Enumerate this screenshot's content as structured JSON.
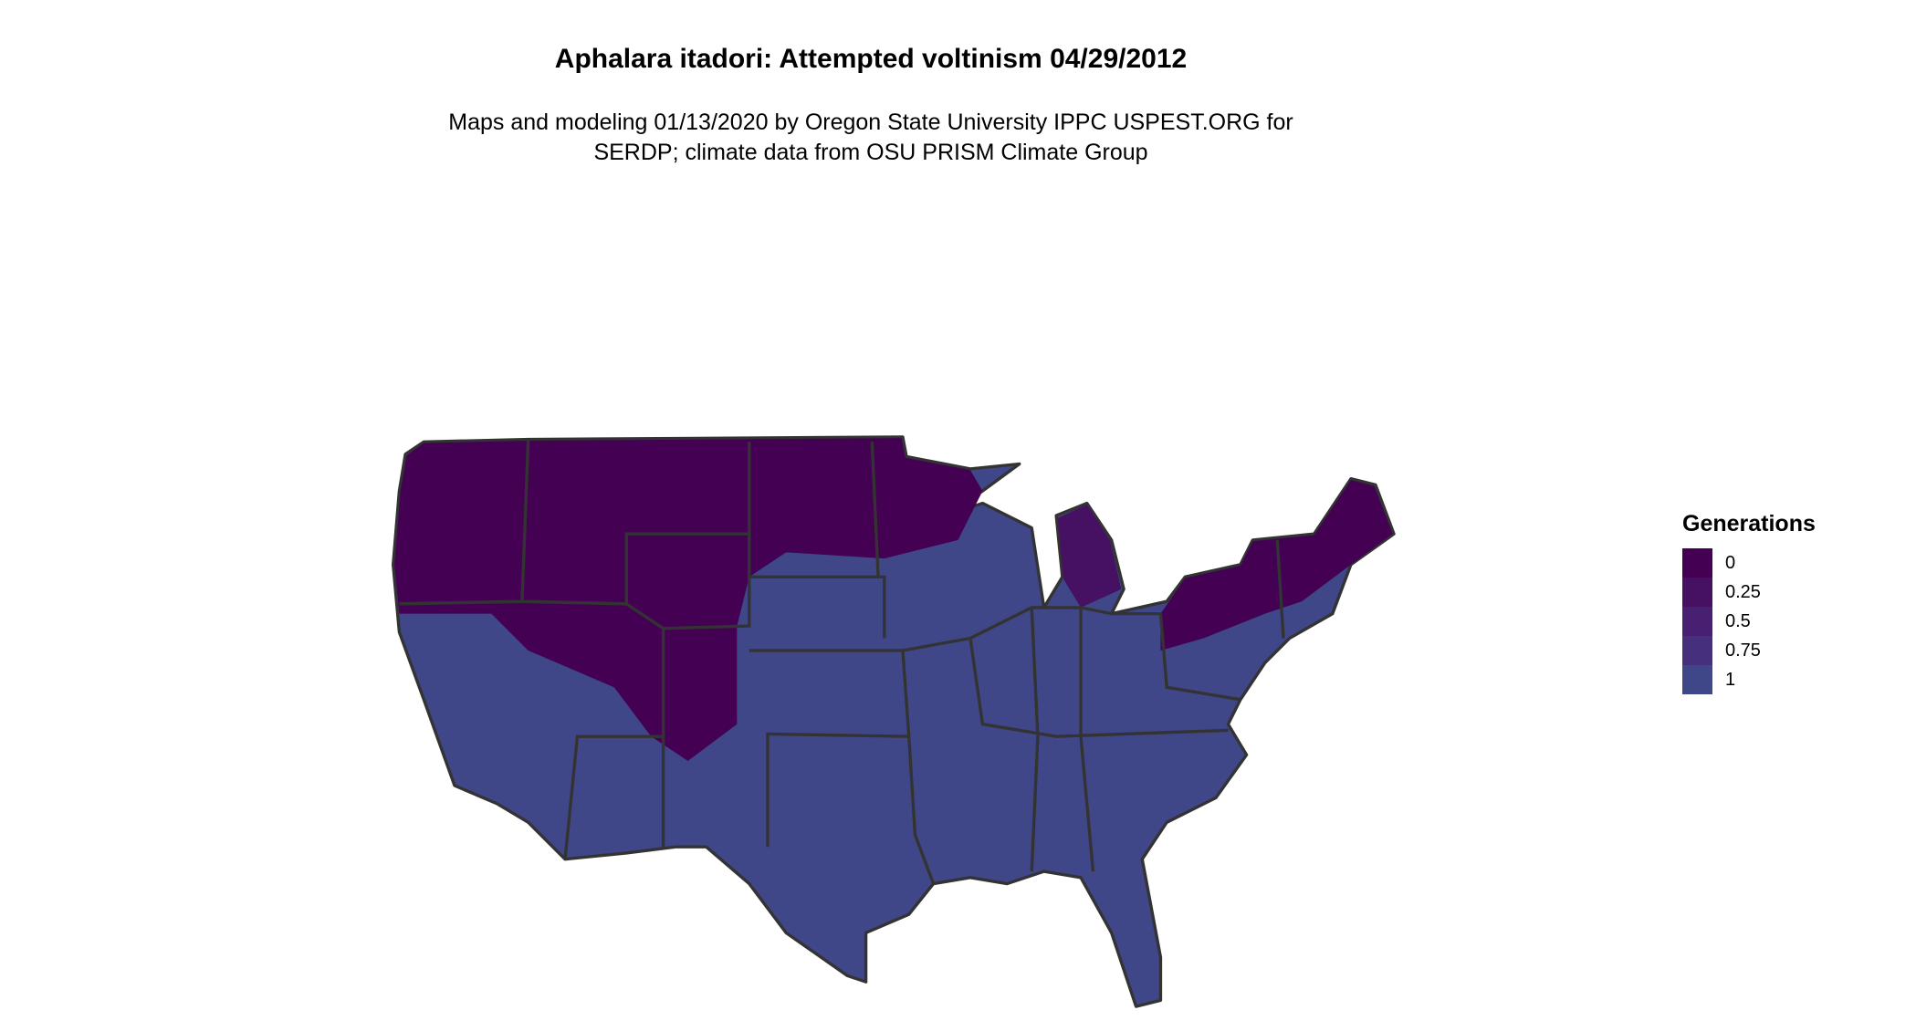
{
  "title": "Aphalara itadori: Attempted voltinism 04/29/2012",
  "subtitle_lines": [
    "Maps and modeling 01/13/2020 by Oregon State University IPPC USPEST.ORG for",
    "SERDP; climate data from OSU PRISM Climate Group"
  ],
  "legend": {
    "title": "Generations",
    "items": [
      {
        "label": "0",
        "color": "#440154"
      },
      {
        "label": "0.25",
        "color": "#471163"
      },
      {
        "label": "0.5",
        "color": "#482071"
      },
      {
        "label": "0.75",
        "color": "#46307e"
      },
      {
        "label": "1",
        "color": "#3f4788"
      }
    ]
  },
  "colors": {
    "state_border": "#333333",
    "background": "#ffffff"
  }
}
